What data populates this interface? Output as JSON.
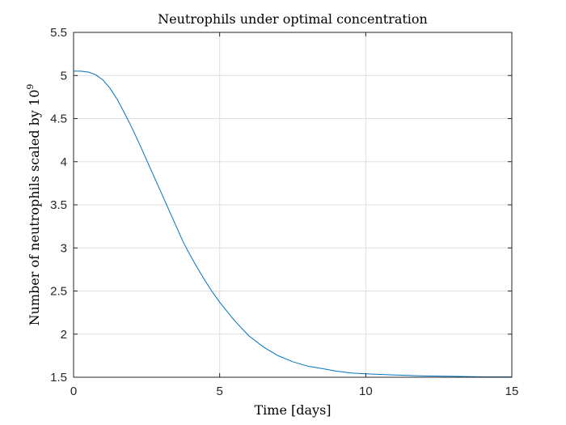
{
  "chart_data": {
    "type": "line",
    "title": "Neutrophils under optimal concentration",
    "xlabel": "Time [days]",
    "ylabel": "Number of neutrophils scaled by 10",
    "ylabel_exponent": "9",
    "xlim": [
      0,
      15
    ],
    "ylim": [
      1.5,
      5.5
    ],
    "xticks": [
      "0",
      "5",
      "10",
      "15"
    ],
    "yticks": [
      "1.5",
      "2",
      "2.5",
      "3",
      "3.5",
      "4",
      "4.5",
      "5",
      "5.5"
    ],
    "grid": true,
    "line_color": "#0072BD",
    "series": [
      {
        "x": [
          0,
          0.25,
          0.5,
          0.75,
          1,
          1.25,
          1.5,
          1.75,
          2,
          2.25,
          2.5,
          2.75,
          3,
          3.25,
          3.5,
          3.75,
          4,
          4.25,
          4.5,
          4.75,
          5,
          5.5,
          6,
          6.5,
          7,
          7.5,
          8,
          8.5,
          9,
          9.5,
          10,
          11,
          12,
          13,
          14,
          15
        ],
        "y": [
          5.05,
          5.05,
          5.04,
          5.01,
          4.95,
          4.85,
          4.72,
          4.56,
          4.39,
          4.21,
          4.02,
          3.83,
          3.64,
          3.45,
          3.26,
          3.07,
          2.91,
          2.76,
          2.62,
          2.49,
          2.37,
          2.16,
          1.98,
          1.85,
          1.75,
          1.68,
          1.63,
          1.6,
          1.57,
          1.55,
          1.54,
          1.525,
          1.515,
          1.51,
          1.505,
          1.505
        ]
      }
    ]
  }
}
